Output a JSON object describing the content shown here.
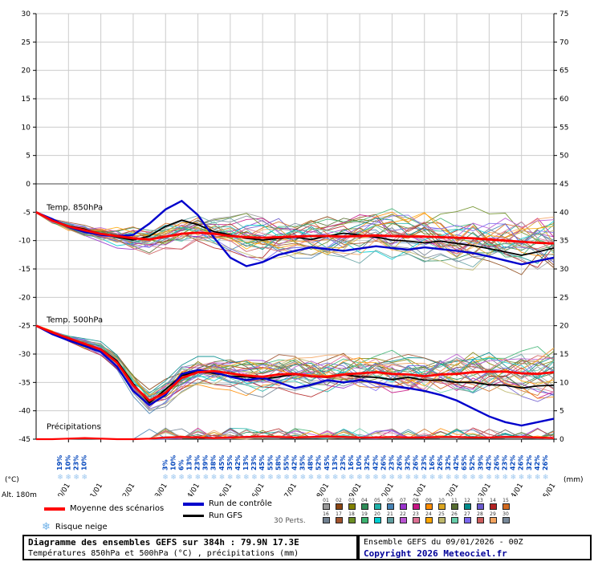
{
  "legend": {
    "mean_label": "Moyenne des scénarios",
    "control_label": "Run de contrôle",
    "gfs_label": "Run GFS",
    "perts_label": "30 Perts.",
    "snow_label": "Risque neige",
    "snow_icon": "❄",
    "alt_label": "Alt. 180m"
  },
  "footer": {
    "title": "Diagramme des ensembles GEFS sur 384h : 79.9N 17.3E",
    "subtitle": "Températures 850hPa et 500hPa (°C) , précipitations (mm)",
    "run_info": "Ensemble GEFS du 09/01/2026 - 00Z",
    "copyright": "Copyright 2026 Meteociel.fr"
  },
  "chart_data": {
    "type": "line",
    "title": "Diagramme des ensembles GEFS sur 384h : 79.9N 17.3E",
    "x_hours_max": 384,
    "step_hours": 12,
    "dates": [
      "10/01",
      "11/01",
      "12/01",
      "13/01",
      "14/01",
      "15/01",
      "16/01",
      "17/01",
      "18/01",
      "19/01",
      "20/01",
      "21/01",
      "22/01",
      "23/01",
      "24/01",
      "25/01"
    ],
    "y_left": {
      "label": "(°C)",
      "min": -45,
      "max": 30,
      "step": 5
    },
    "y_right": {
      "label": "(mm)",
      "min": 0,
      "max": 75,
      "step": 5
    },
    "sections": [
      {
        "label": "Temp. 850hPa",
        "at_deg": -4.6
      },
      {
        "label": "Temp. 500hPa",
        "at_deg": -24.4
      },
      {
        "label": "Précipitations",
        "at_deg": -43.2
      }
    ],
    "series": {
      "t850": {
        "mean": [
          -5,
          -6.5,
          -7.5,
          -8.2,
          -8.8,
          -9.2,
          -9.6,
          -9.8,
          -9.3,
          -8.8,
          -8.6,
          -8.8,
          -9.2,
          -9.4,
          -9.5,
          -9.4,
          -9.3,
          -9.2,
          -9.2,
          -9.3,
          -9.2,
          -9.1,
          -9.2,
          -9.3,
          -9.3,
          -9.4,
          -9.5,
          -9.6,
          -9.8,
          -10,
          -10.2,
          -10.4,
          -10.5
        ],
        "control": [
          -5,
          -6.2,
          -7.6,
          -8.5,
          -9,
          -9.2,
          -9,
          -7,
          -4.5,
          -3,
          -5.5,
          -9.5,
          -13,
          -14.5,
          -13.8,
          -12.5,
          -11.8,
          -11.2,
          -11.5,
          -11.8,
          -11.4,
          -11,
          -11.3,
          -11.6,
          -11.2,
          -11.5,
          -11.8,
          -12.2,
          -12.8,
          -13.5,
          -14.2,
          -13.6,
          -13
        ],
        "gfs": [
          -5,
          -6.4,
          -7.4,
          -8,
          -8.8,
          -9.4,
          -9.9,
          -9.2,
          -7.5,
          -6.4,
          -7.2,
          -8.4,
          -9,
          -9.6,
          -9.9,
          -9.6,
          -9.4,
          -9.8,
          -9.2,
          -8.7,
          -9,
          -9.4,
          -9.9,
          -10.1,
          -10.4,
          -10.1,
          -10.5,
          -10.9,
          -11.4,
          -12,
          -12.6,
          -12,
          -11.3
        ],
        "spread": [
          0.3,
          0.8,
          1.2,
          1.6,
          2,
          2.4,
          2.8,
          3,
          3.4,
          3.6,
          3.8,
          3.8,
          4,
          4.2,
          4.2,
          4.4,
          4.4,
          4.6,
          4.6,
          4.8,
          4.8,
          5,
          5,
          5.2,
          5.2,
          5.4,
          5.4,
          5.6,
          5.6,
          5.8,
          5.8,
          6,
          6
        ]
      },
      "t500": {
        "mean": [
          -25,
          -26.2,
          -27.2,
          -28.2,
          -29.2,
          -31.5,
          -35.5,
          -38.2,
          -36.8,
          -34.2,
          -33.2,
          -33,
          -33.4,
          -33.8,
          -34,
          -33.6,
          -33.5,
          -33.9,
          -34,
          -33.6,
          -33.4,
          -33.2,
          -33.5,
          -33.6,
          -33.9,
          -33.6,
          -33.5,
          -33.2,
          -33.1,
          -33.1,
          -33.4,
          -33.5,
          -33.2
        ],
        "control": [
          -25,
          -26.5,
          -27.6,
          -28.6,
          -29.6,
          -32.2,
          -36.5,
          -39,
          -37.2,
          -33.5,
          -32.8,
          -33.2,
          -34,
          -34.6,
          -34.2,
          -35,
          -36,
          -35.4,
          -34.6,
          -35,
          -34.6,
          -35,
          -35.6,
          -36,
          -36.5,
          -37.2,
          -38.2,
          -39.6,
          -41,
          -42,
          -42.6,
          -42,
          -41.4
        ],
        "gfs": [
          -25,
          -26.1,
          -27.4,
          -28.4,
          -29.1,
          -31.2,
          -35.2,
          -38.6,
          -36.2,
          -33.8,
          -33.1,
          -33.4,
          -33.9,
          -34,
          -34.4,
          -34,
          -33.6,
          -34,
          -34.1,
          -33.6,
          -34,
          -34.1,
          -34.5,
          -34.1,
          -34.6,
          -34.6,
          -35,
          -35,
          -35.4,
          -35.5,
          -36,
          -35.6,
          -35.5
        ],
        "spread": [
          0.3,
          0.6,
          1,
          1.4,
          1.8,
          2.2,
          2.6,
          2.8,
          3,
          3.2,
          3.4,
          3.4,
          3.6,
          3.8,
          3.8,
          4,
          4,
          4.2,
          4.2,
          4.4,
          4.4,
          4.6,
          4.6,
          4.8,
          4.8,
          5,
          5,
          5.2,
          5.2,
          5.4,
          5.4,
          5.6,
          5.6
        ]
      },
      "precip": {
        "mean": [
          0,
          0,
          0.1,
          0.2,
          0.1,
          0,
          0,
          0.1,
          0.3,
          0.4,
          0.3,
          0.2,
          0.3,
          0.4,
          0.5,
          0.4,
          0.3,
          0.4,
          0.5,
          0.4,
          0.3,
          0.3,
          0.4,
          0.3,
          0.3,
          0.4,
          0.4,
          0.3,
          0.3,
          0.4,
          0.4,
          0.3,
          0.2
        ]
      }
    },
    "snow_risk": [
      [
        18,
        "19%"
      ],
      [
        24,
        "10%"
      ],
      [
        30,
        "23%"
      ],
      [
        36,
        "10%"
      ],
      [
        96,
        "3%"
      ],
      [
        102,
        "10%"
      ],
      [
        108,
        "6%"
      ],
      [
        114,
        "13%"
      ],
      [
        120,
        "23%"
      ],
      [
        126,
        "39%"
      ],
      [
        132,
        "38%"
      ],
      [
        138,
        "45%"
      ],
      [
        144,
        "35%"
      ],
      [
        150,
        "42%"
      ],
      [
        156,
        "13%"
      ],
      [
        162,
        "23%"
      ],
      [
        168,
        "45%"
      ],
      [
        174,
        "55%"
      ],
      [
        180,
        "58%"
      ],
      [
        186,
        "55%"
      ],
      [
        192,
        "42%"
      ],
      [
        198,
        "35%"
      ],
      [
        204,
        "48%"
      ],
      [
        210,
        "52%"
      ],
      [
        216,
        "45%"
      ],
      [
        222,
        "13%"
      ],
      [
        228,
        "23%"
      ],
      [
        234,
        "16%"
      ],
      [
        240,
        "10%"
      ],
      [
        246,
        "32%"
      ],
      [
        252,
        "42%"
      ],
      [
        258,
        "26%"
      ],
      [
        264,
        "23%"
      ],
      [
        270,
        "26%"
      ],
      [
        276,
        "32%"
      ],
      [
        282,
        "26%"
      ],
      [
        288,
        "23%"
      ],
      [
        294,
        "16%"
      ],
      [
        300,
        "26%"
      ],
      [
        306,
        "32%"
      ],
      [
        312,
        "42%"
      ],
      [
        318,
        "65%"
      ],
      [
        324,
        "52%"
      ],
      [
        330,
        "39%"
      ],
      [
        336,
        "42%"
      ],
      [
        342,
        "26%"
      ],
      [
        348,
        "23%"
      ],
      [
        354,
        "42%"
      ],
      [
        360,
        "26%"
      ],
      [
        366,
        "32%"
      ],
      [
        372,
        "42%"
      ],
      [
        378,
        "26%"
      ]
    ],
    "ensemble": {
      "count": 30,
      "labels": [
        "01",
        "02",
        "03",
        "04",
        "05",
        "06",
        "07",
        "08",
        "09",
        "10",
        "11",
        "12",
        "13",
        "14",
        "15",
        "16",
        "17",
        "18",
        "19",
        "20",
        "21",
        "22",
        "23",
        "24",
        "25",
        "26",
        "27",
        "28",
        "29",
        "30"
      ],
      "palette": [
        "#999999",
        "#8b4513",
        "#808000",
        "#2e8b57",
        "#20b2aa",
        "#4682b4",
        "#9932cc",
        "#c71585",
        "#ff8c00",
        "#daa520",
        "#556b2f",
        "#008b8b",
        "#6a5acd",
        "#b22222",
        "#d2691e",
        "#708090",
        "#a0522d",
        "#6b8e23",
        "#3cb371",
        "#00ced1",
        "#5f9ea0",
        "#ba55d3",
        "#db7093",
        "#ffa500",
        "#bdb76b",
        "#66cdaa",
        "#7b68ee",
        "#cd5c5c",
        "#f4a460",
        "#778899"
      ]
    },
    "colors": {
      "mean": "#ff0000",
      "control": "#0000cc",
      "gfs": "#000000",
      "grid": "#cccccc",
      "zero_line": "#444444",
      "axis": "#000000",
      "snow_text": "#0044bb",
      "snow_flake": "#9cc7ef"
    },
    "legend_position": "bottom",
    "grid": true
  }
}
